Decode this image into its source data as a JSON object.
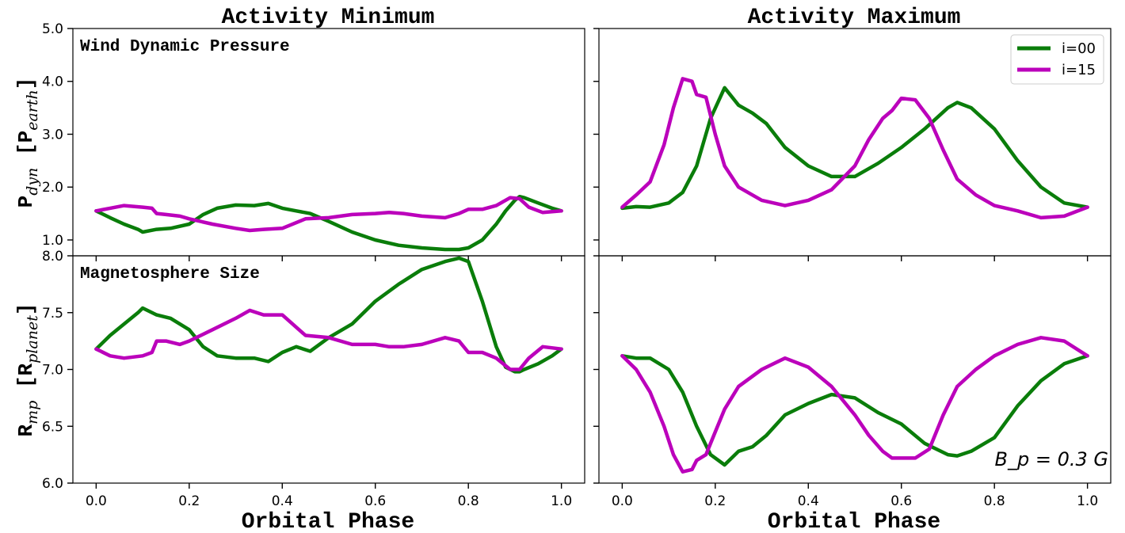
{
  "colors": {
    "i00": "#0a7d0a",
    "i15": "#bb00bb"
  },
  "chart_data": [
    {
      "type": "line",
      "column_title": "Activity Minimum",
      "panel_label": "Wind Dynamic Pressure",
      "ylabel_main": "P",
      "ylabel_sub": "dyn",
      "ylabel_unit_main": "P",
      "ylabel_unit_sub": "earth",
      "xlabel": "",
      "xlim": [
        -0.05,
        1.05
      ],
      "ylim": [
        0.7,
        5.0
      ],
      "yticks": [
        "1.0",
        "2.0",
        "3.0",
        "4.0",
        "5.0"
      ],
      "ytick_values": [
        1.0,
        2.0,
        3.0,
        4.0,
        5.0
      ],
      "series": [
        {
          "name": "i=00",
          "x": [
            0,
            0.03,
            0.06,
            0.09,
            0.1,
            0.13,
            0.16,
            0.2,
            0.23,
            0.26,
            0.3,
            0.34,
            0.37,
            0.4,
            0.43,
            0.46,
            0.5,
            0.55,
            0.6,
            0.65,
            0.7,
            0.75,
            0.78,
            0.8,
            0.83,
            0.86,
            0.88,
            0.9,
            0.91,
            0.92,
            0.95,
            0.98,
            1.0
          ],
          "y": [
            1.55,
            1.42,
            1.3,
            1.2,
            1.15,
            1.2,
            1.22,
            1.3,
            1.48,
            1.6,
            1.66,
            1.65,
            1.69,
            1.6,
            1.55,
            1.5,
            1.35,
            1.15,
            1.0,
            0.9,
            0.85,
            0.82,
            0.82,
            0.85,
            1.0,
            1.3,
            1.55,
            1.75,
            1.82,
            1.8,
            1.7,
            1.6,
            1.55
          ]
        },
        {
          "name": "i=15",
          "x": [
            0,
            0.03,
            0.06,
            0.1,
            0.12,
            0.13,
            0.15,
            0.18,
            0.2,
            0.25,
            0.3,
            0.33,
            0.36,
            0.4,
            0.45,
            0.5,
            0.55,
            0.6,
            0.63,
            0.66,
            0.7,
            0.75,
            0.78,
            0.8,
            0.83,
            0.86,
            0.89,
            0.91,
            0.93,
            0.96,
            1.0
          ],
          "y": [
            1.55,
            1.6,
            1.65,
            1.62,
            1.6,
            1.5,
            1.48,
            1.45,
            1.4,
            1.3,
            1.22,
            1.18,
            1.2,
            1.22,
            1.4,
            1.42,
            1.48,
            1.5,
            1.52,
            1.5,
            1.45,
            1.42,
            1.5,
            1.58,
            1.58,
            1.65,
            1.8,
            1.78,
            1.62,
            1.52,
            1.55
          ]
        }
      ]
    },
    {
      "type": "line",
      "column_title": "Activity Maximum",
      "xlabel": "",
      "xlim": [
        -0.05,
        1.05
      ],
      "ylim": [
        0.7,
        5.0
      ],
      "legend": {
        "placement": "top-right",
        "entries": [
          "i=00",
          "i=15"
        ]
      },
      "series": [
        {
          "name": "i=00",
          "x": [
            0,
            0.03,
            0.06,
            0.1,
            0.13,
            0.16,
            0.19,
            0.22,
            0.25,
            0.28,
            0.31,
            0.35,
            0.4,
            0.45,
            0.5,
            0.55,
            0.6,
            0.65,
            0.7,
            0.72,
            0.75,
            0.8,
            0.85,
            0.9,
            0.95,
            1.0
          ],
          "y": [
            1.6,
            1.63,
            1.62,
            1.7,
            1.9,
            2.4,
            3.3,
            3.88,
            3.55,
            3.4,
            3.2,
            2.75,
            2.4,
            2.2,
            2.2,
            2.45,
            2.75,
            3.1,
            3.5,
            3.6,
            3.5,
            3.1,
            2.5,
            2.0,
            1.7,
            1.62
          ]
        },
        {
          "name": "i=15",
          "x": [
            0,
            0.03,
            0.06,
            0.09,
            0.11,
            0.13,
            0.15,
            0.16,
            0.18,
            0.2,
            0.22,
            0.25,
            0.3,
            0.35,
            0.4,
            0.45,
            0.5,
            0.53,
            0.56,
            0.58,
            0.6,
            0.63,
            0.66,
            0.69,
            0.72,
            0.76,
            0.8,
            0.85,
            0.9,
            0.95,
            1.0
          ],
          "y": [
            1.62,
            1.85,
            2.1,
            2.8,
            3.5,
            4.05,
            4.0,
            3.75,
            3.7,
            3.0,
            2.4,
            2.0,
            1.75,
            1.65,
            1.75,
            1.95,
            2.4,
            2.9,
            3.3,
            3.45,
            3.68,
            3.65,
            3.3,
            2.7,
            2.15,
            1.85,
            1.65,
            1.55,
            1.42,
            1.45,
            1.62
          ]
        }
      ]
    },
    {
      "type": "line",
      "panel_label": "Magnetosphere Size",
      "ylabel_main": "R",
      "ylabel_sub": "mp",
      "ylabel_unit_main": "R",
      "ylabel_unit_sub": "planet",
      "xlabel": "Orbital Phase",
      "xlim": [
        -0.05,
        1.05
      ],
      "ylim": [
        6.0,
        8.0
      ],
      "xticks": [
        "0.0",
        "0.2",
        "0.4",
        "0.6",
        "0.8",
        "1.0"
      ],
      "xtick_values": [
        0.0,
        0.2,
        0.4,
        0.6,
        0.8,
        1.0
      ],
      "yticks": [
        "6.0",
        "6.5",
        "7.0",
        "7.5",
        "8.0"
      ],
      "ytick_values": [
        6.0,
        6.5,
        7.0,
        7.5,
        8.0
      ],
      "series": [
        {
          "name": "i=00",
          "x": [
            0,
            0.03,
            0.06,
            0.09,
            0.1,
            0.13,
            0.16,
            0.2,
            0.23,
            0.26,
            0.3,
            0.34,
            0.37,
            0.4,
            0.43,
            0.46,
            0.5,
            0.55,
            0.6,
            0.65,
            0.7,
            0.75,
            0.78,
            0.8,
            0.83,
            0.86,
            0.88,
            0.9,
            0.91,
            0.92,
            0.95,
            0.98,
            1.0
          ],
          "y": [
            7.18,
            7.3,
            7.4,
            7.5,
            7.54,
            7.48,
            7.45,
            7.35,
            7.2,
            7.12,
            7.1,
            7.1,
            7.07,
            7.15,
            7.2,
            7.16,
            7.28,
            7.4,
            7.6,
            7.75,
            7.88,
            7.95,
            7.98,
            7.95,
            7.6,
            7.2,
            7.02,
            6.98,
            6.98,
            7.0,
            7.05,
            7.12,
            7.18
          ]
        },
        {
          "name": "i=15",
          "x": [
            0,
            0.03,
            0.06,
            0.1,
            0.12,
            0.13,
            0.15,
            0.18,
            0.2,
            0.25,
            0.3,
            0.33,
            0.36,
            0.4,
            0.45,
            0.5,
            0.55,
            0.6,
            0.63,
            0.66,
            0.7,
            0.75,
            0.78,
            0.8,
            0.83,
            0.86,
            0.89,
            0.91,
            0.93,
            0.96,
            1.0
          ],
          "y": [
            7.18,
            7.12,
            7.1,
            7.12,
            7.15,
            7.25,
            7.25,
            7.22,
            7.25,
            7.35,
            7.45,
            7.52,
            7.48,
            7.48,
            7.3,
            7.28,
            7.22,
            7.22,
            7.2,
            7.2,
            7.22,
            7.28,
            7.25,
            7.15,
            7.15,
            7.1,
            7.0,
            7.0,
            7.1,
            7.2,
            7.18
          ]
        }
      ]
    },
    {
      "type": "line",
      "xlabel": "Orbital Phase",
      "xlim": [
        -0.05,
        1.05
      ],
      "ylim": [
        6.0,
        8.0
      ],
      "xticks": [
        "0.0",
        "0.2",
        "0.4",
        "0.6",
        "0.8",
        "1.0"
      ],
      "xtick_values": [
        0.0,
        0.2,
        0.4,
        0.6,
        0.8,
        1.0
      ],
      "annotation": "B_p = 0.3 G",
      "series": [
        {
          "name": "i=00",
          "x": [
            0,
            0.03,
            0.06,
            0.1,
            0.13,
            0.16,
            0.19,
            0.22,
            0.25,
            0.28,
            0.31,
            0.35,
            0.4,
            0.45,
            0.5,
            0.55,
            0.6,
            0.65,
            0.7,
            0.72,
            0.75,
            0.8,
            0.85,
            0.9,
            0.95,
            1.0
          ],
          "y": [
            7.12,
            7.1,
            7.1,
            7.0,
            6.8,
            6.5,
            6.25,
            6.16,
            6.28,
            6.32,
            6.42,
            6.6,
            6.7,
            6.78,
            6.75,
            6.62,
            6.52,
            6.35,
            6.25,
            6.24,
            6.28,
            6.4,
            6.68,
            6.9,
            7.05,
            7.12
          ]
        },
        {
          "name": "i=15",
          "x": [
            0,
            0.03,
            0.06,
            0.09,
            0.11,
            0.13,
            0.15,
            0.16,
            0.18,
            0.2,
            0.22,
            0.25,
            0.3,
            0.35,
            0.4,
            0.45,
            0.5,
            0.53,
            0.56,
            0.58,
            0.6,
            0.63,
            0.66,
            0.69,
            0.72,
            0.76,
            0.8,
            0.85,
            0.9,
            0.95,
            1.0
          ],
          "y": [
            7.12,
            7.0,
            6.8,
            6.5,
            6.25,
            6.1,
            6.12,
            6.2,
            6.25,
            6.45,
            6.65,
            6.85,
            7.0,
            7.1,
            7.02,
            6.85,
            6.6,
            6.42,
            6.28,
            6.22,
            6.22,
            6.22,
            6.3,
            6.6,
            6.85,
            7.0,
            7.12,
            7.22,
            7.28,
            7.25,
            7.12
          ]
        }
      ]
    }
  ]
}
